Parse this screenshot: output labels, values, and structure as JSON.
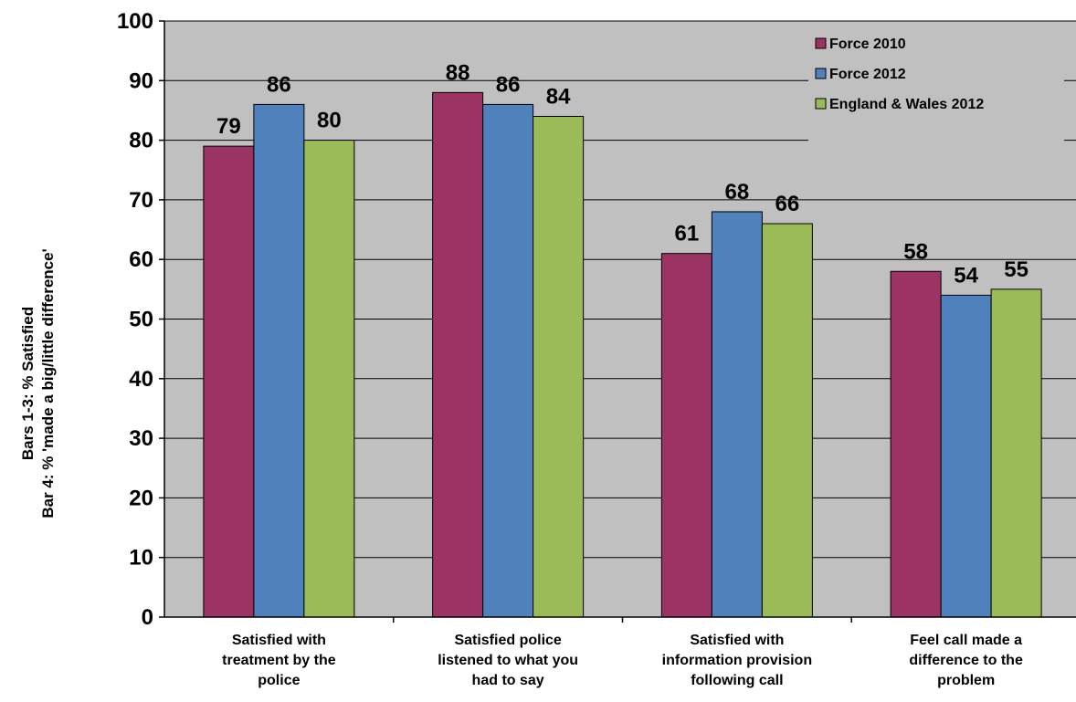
{
  "chart_data": {
    "type": "bar",
    "categories": [
      [
        "Satisfied with",
        "treatment by the",
        "police"
      ],
      [
        "Satisfied police",
        "listened to what you",
        "had to say"
      ],
      [
        "Satisfied with",
        "information provision",
        "following call"
      ],
      [
        "Feel call made a",
        "difference to the",
        "problem"
      ]
    ],
    "series": [
      {
        "name": "Force 2010",
        "color": "#9B3462",
        "values": [
          79,
          88,
          61,
          58
        ]
      },
      {
        "name": "Force 2012",
        "color": "#4F81BD",
        "values": [
          86,
          86,
          68,
          54
        ]
      },
      {
        "name": "England & Wales 2012",
        "color": "#9BBB59",
        "values": [
          80,
          84,
          66,
          55
        ]
      }
    ],
    "ylabel": [
      "Bars 1-3: % Satisfied",
      "Bar 4: % 'made a big/little difference'"
    ],
    "xlabel": "",
    "title": "",
    "ylim": [
      0,
      100
    ],
    "yticks": [
      0,
      10,
      20,
      30,
      40,
      50,
      60,
      70,
      80,
      90,
      100
    ],
    "grid": true,
    "legend_position": "top-right",
    "plot_background": "#C0C0C0",
    "data_labels": true
  }
}
